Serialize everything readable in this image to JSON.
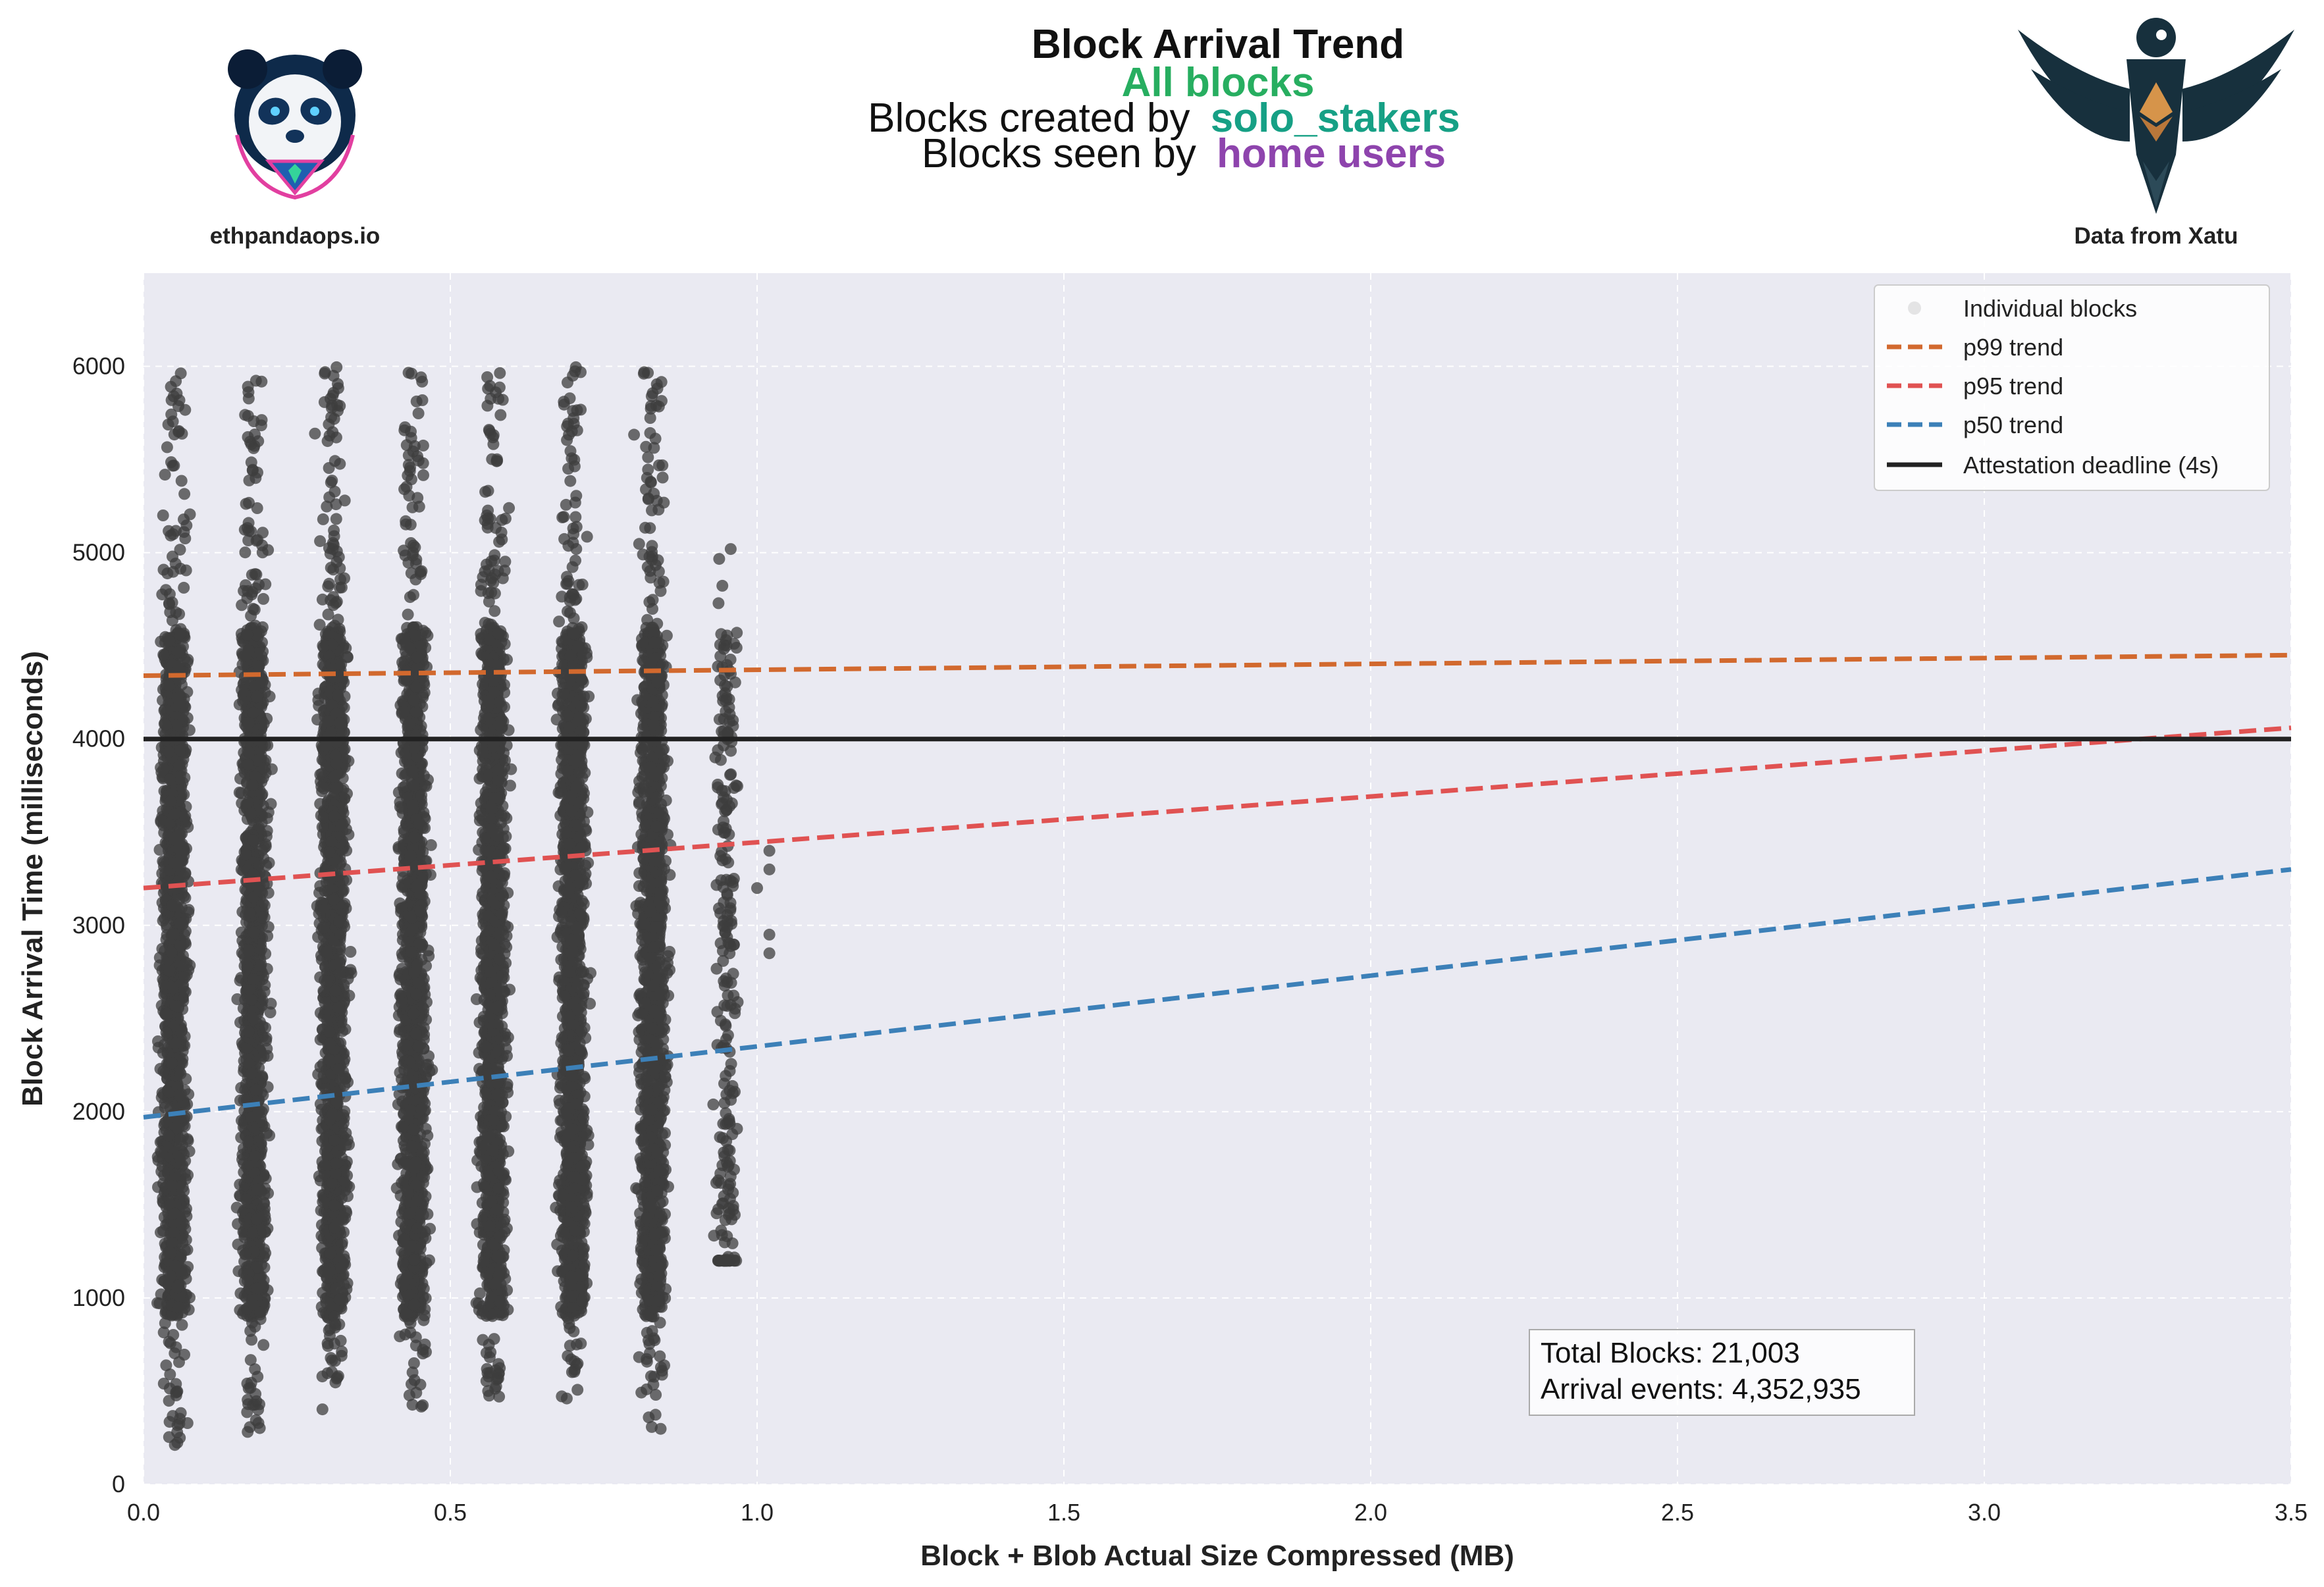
{
  "header": {
    "title": "Block Arrival Trend",
    "line2": "All blocks",
    "line3_prefix": "Blocks created by",
    "line3_highlight": "solo_stakers",
    "line4_prefix": "Blocks seen by",
    "line4_highlight": "home users",
    "colors": {
      "line2": "#27ae60",
      "line3": "#16a085",
      "line4": "#8e44ad"
    }
  },
  "logos": {
    "left_label": "ethpandaops.io",
    "left_icon": "panda-logo-icon",
    "right_label": "Data from Xatu",
    "right_icon": "xatu-bird-logo-icon"
  },
  "stats_box": {
    "total_blocks": "Total Blocks: 21,003",
    "arrival_events": "Arrival events: 4,352,935"
  },
  "chart_data": {
    "type": "scatter",
    "title": "Block Arrival Trend",
    "xlabel": "Block + Blob Actual Size Compressed (MB)",
    "ylabel": "Block Arrival Time (milliseconds)",
    "xlim": [
      0.0,
      3.5
    ],
    "ylim": [
      0,
      6500
    ],
    "x_ticks": [
      "0.0",
      "0.5",
      "1.0",
      "1.5",
      "2.0",
      "2.5",
      "3.0",
      "3.5"
    ],
    "y_ticks": [
      "0",
      "1000",
      "2000",
      "3000",
      "4000",
      "5000",
      "6000"
    ],
    "grid": true,
    "legend_position": "top-right",
    "scatter": {
      "name": "Individual blocks",
      "color": "#3d3d3d",
      "clusters": [
        {
          "x_center": 0.05,
          "y_min": 180,
          "y_max": 6000
        },
        {
          "x_center": 0.18,
          "y_min": 260,
          "y_max": 5950
        },
        {
          "x_center": 0.31,
          "y_min": 370,
          "y_max": 6000
        },
        {
          "x_center": 0.44,
          "y_min": 400,
          "y_max": 6000
        },
        {
          "x_center": 0.57,
          "y_min": 430,
          "y_max": 6000
        },
        {
          "x_center": 0.7,
          "y_min": 440,
          "y_max": 6000
        },
        {
          "x_center": 0.83,
          "y_min": 280,
          "y_max": 6000
        },
        {
          "x_center": 0.95,
          "y_min": 1200,
          "y_max": 5200
        }
      ]
    },
    "series": [
      {
        "name": "p99 trend",
        "color": "#d2692e",
        "style": "dashed",
        "x": [
          0.0,
          3.5
        ],
        "y": [
          4340,
          4450
        ]
      },
      {
        "name": "p95 trend",
        "color": "#e05252",
        "style": "dashed",
        "x": [
          0.0,
          3.5
        ],
        "y": [
          3200,
          4060
        ]
      },
      {
        "name": "p50 trend",
        "color": "#3c80b8",
        "style": "dashed",
        "x": [
          0.0,
          3.5
        ],
        "y": [
          1970,
          3300
        ]
      },
      {
        "name": "Attestation deadline (4s)",
        "color": "#222222",
        "style": "solid",
        "x": [
          0.0,
          3.5
        ],
        "y": [
          4000,
          4000
        ]
      }
    ]
  }
}
